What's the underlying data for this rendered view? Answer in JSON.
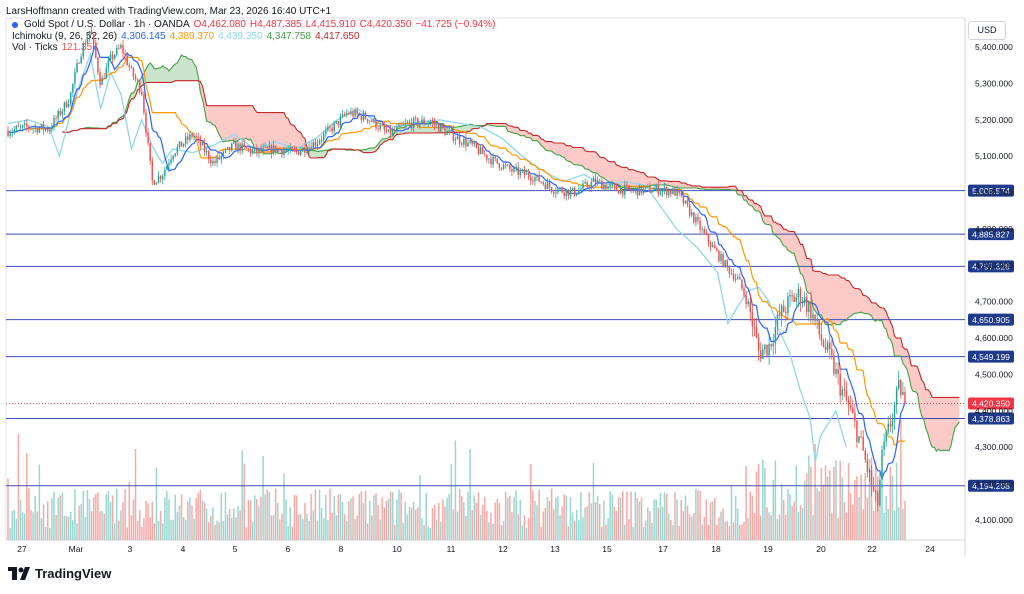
{
  "byline": "LarsHoffmann created with TradingView.com, Mar 23, 2026 16:40 UTC+1",
  "legend": {
    "symbol": "Gold Spot / U.S. Dollar · 1h · OANDA",
    "open": "O4,462.080",
    "high": "H4,487.385",
    "low": "L4,415.910",
    "close": "C4,420.350",
    "change": "−41.725 (−0.94%)",
    "ichimoku_name": "Ichimoku (9, 26, 52, 26)",
    "ichimoku_values": [
      "4,306.145",
      "4,389.370",
      "4,439.350",
      "4,347.758",
      "4,417.650"
    ],
    "vol_name": "Vol · Ticks",
    "vol_value": "121.35K"
  },
  "currency": "USD",
  "logo_text": "TradingView",
  "colors": {
    "up": "#26a69a",
    "down": "#ef5350",
    "tenkan": "#2962ff",
    "kijun": "#ff9800",
    "chikou": "#8fd6ee",
    "span_a": "#43a047",
    "span_b": "#c62828",
    "level": "#3f51b5",
    "last_price": "#f23645"
  },
  "chart_data": {
    "type": "candlestick",
    "symbol": "XAUUSD",
    "timeframe": "1h",
    "x_ticks": [
      "27",
      "Mar",
      "3",
      "4",
      "5",
      "6",
      "8",
      "10",
      "11",
      "12",
      "13",
      "15",
      "17",
      "18",
      "19",
      "20",
      "22",
      "24"
    ],
    "y_ticks": [
      4100,
      4200,
      4300,
      4400,
      4500,
      4600,
      4700,
      4800,
      4900,
      5000,
      5100,
      5200,
      5300,
      5400
    ],
    "ylim": [
      4045,
      5480
    ],
    "levels": [
      5005.574,
      4885.827,
      4797.328,
      4650.905,
      4549.199,
      4378.863,
      4194.208
    ],
    "last_price": 4420.35,
    "price_path": [
      [
        0,
        5170
      ],
      [
        2,
        5180
      ],
      [
        4,
        5175
      ],
      [
        6,
        5260
      ],
      [
        7,
        5380
      ],
      [
        8,
        5450
      ],
      [
        9,
        5300
      ],
      [
        10,
        5370
      ],
      [
        11,
        5400
      ],
      [
        12,
        5330
      ],
      [
        13,
        5280
      ],
      [
        14,
        5030
      ],
      [
        15,
        5050
      ],
      [
        16,
        5110
      ],
      [
        18,
        5160
      ],
      [
        20,
        5080
      ],
      [
        22,
        5130
      ],
      [
        24,
        5110
      ],
      [
        26,
        5120
      ],
      [
        28,
        5110
      ],
      [
        30,
        5140
      ],
      [
        32,
        5190
      ],
      [
        33,
        5220
      ],
      [
        35,
        5205
      ],
      [
        37,
        5160
      ],
      [
        39,
        5190
      ],
      [
        41,
        5195
      ],
      [
        43,
        5160
      ],
      [
        45,
        5130
      ],
      [
        47,
        5090
      ],
      [
        49,
        5060
      ],
      [
        51,
        5045
      ],
      [
        53,
        5010
      ],
      [
        55,
        5000
      ],
      [
        57,
        5030
      ],
      [
        59,
        5010
      ],
      [
        61,
        5005
      ],
      [
        63,
        5010
      ],
      [
        65,
        5000
      ],
      [
        66,
        4960
      ],
      [
        68,
        4870
      ],
      [
        70,
        4790
      ],
      [
        71,
        4760
      ],
      [
        72,
        4690
      ],
      [
        73,
        4560
      ],
      [
        74,
        4580
      ],
      [
        75,
        4660
      ],
      [
        76,
        4700
      ],
      [
        77,
        4720
      ],
      [
        78,
        4680
      ],
      [
        79,
        4600
      ],
      [
        80,
        4540
      ],
      [
        81,
        4460
      ],
      [
        82,
        4390
      ],
      [
        83,
        4300
      ],
      [
        84,
        4190
      ],
      [
        84.5,
        4130
      ],
      [
        85,
        4280
      ],
      [
        86,
        4390
      ],
      [
        86.7,
        4470
      ],
      [
        87.2,
        4420
      ]
    ],
    "chikou_path": [
      [
        0,
        5190
      ],
      [
        2,
        5200
      ],
      [
        4,
        5180
      ],
      [
        5,
        5100
      ],
      [
        6,
        5210
      ],
      [
        7,
        5300
      ],
      [
        8,
        5380
      ],
      [
        9,
        5230
      ],
      [
        10,
        5330
      ],
      [
        11,
        5270
      ],
      [
        12,
        5120
      ],
      [
        13,
        5200
      ],
      [
        14,
        5130
      ],
      [
        15,
        5080
      ],
      [
        16,
        5120
      ],
      [
        18,
        5110
      ],
      [
        20,
        5130
      ],
      [
        22,
        5160
      ],
      [
        24,
        5120
      ],
      [
        26,
        5140
      ],
      [
        28,
        5120
      ],
      [
        30,
        5150
      ],
      [
        32,
        5200
      ],
      [
        34,
        5230
      ],
      [
        36,
        5190
      ],
      [
        38,
        5180
      ],
      [
        40,
        5195
      ],
      [
        42,
        5200
      ],
      [
        44,
        5190
      ],
      [
        46,
        5180
      ],
      [
        48,
        5150
      ],
      [
        50,
        5100
      ],
      [
        52,
        5060
      ],
      [
        54,
        5030
      ],
      [
        56,
        5050
      ],
      [
        58,
        5020
      ],
      [
        60,
        5030
      ],
      [
        62,
        5020
      ],
      [
        63,
        4980
      ],
      [
        65,
        4900
      ],
      [
        67,
        4850
      ],
      [
        69,
        4780
      ],
      [
        70,
        4640
      ],
      [
        71,
        4690
      ],
      [
        72,
        4730
      ],
      [
        73,
        4740
      ],
      [
        74,
        4700
      ],
      [
        75,
        4620
      ],
      [
        76,
        4560
      ],
      [
        77,
        4460
      ],
      [
        78,
        4380
      ],
      [
        78.5,
        4260
      ],
      [
        79,
        4330
      ],
      [
        80.5,
        4400
      ],
      [
        81.5,
        4300
      ]
    ],
    "volume_max": 121350
  }
}
